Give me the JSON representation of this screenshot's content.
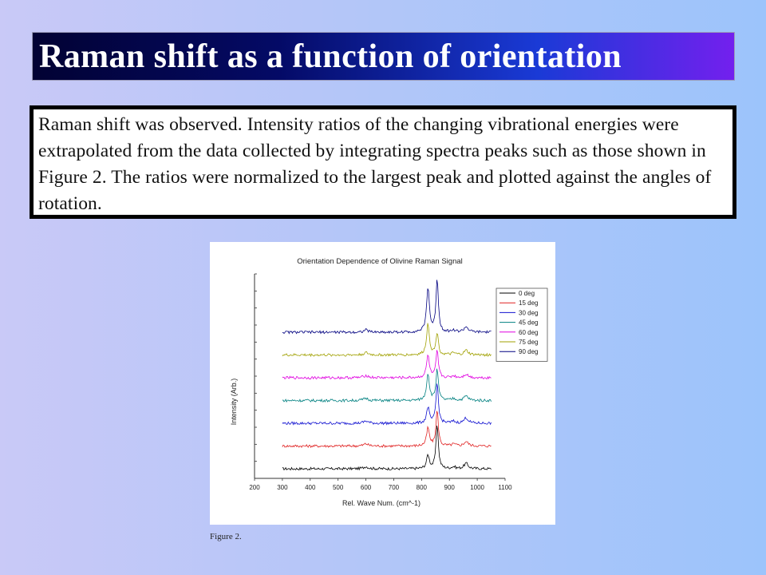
{
  "slide": {
    "title": "Raman shift as a function of orientation",
    "body": "Raman shift was observed. Intensity ratios of the changing vibrational energies were extrapolated from the data collected by integrating spectra peaks such  as those shown in Figure 2. The ratios were normalized to the largest peak and plotted against the angles of rotation.",
    "caption": "Figure 2."
  },
  "colors": {
    "title_bar_start": "#020233",
    "title_bar_end": "#7320ee",
    "background": "#b4c6f8"
  },
  "chart_data": {
    "type": "line",
    "title": "Orientation Dependence of Olivine Raman Signal",
    "xlabel": "Rel. Wave Num. (cm^-1)",
    "ylabel": "Intensity (Arb.)",
    "xlim": [
      200,
      1100
    ],
    "x_ticks": [
      "200",
      "300",
      "400",
      "500",
      "600",
      "700",
      "800",
      "900",
      "1000",
      "1100"
    ],
    "y_ticks_labeled": false,
    "grid": false,
    "legend_position": "top-right",
    "x_range": [
      300,
      1050
    ],
    "peaks_cm1": [
      823,
      856,
      960
    ],
    "series": [
      {
        "name": "0 deg",
        "color": "#000000",
        "peak823": 0.3,
        "peak856": 1.0,
        "peak960": 0.12,
        "offset": 0
      },
      {
        "name": "15 deg",
        "color": "#e02020",
        "peak823": 0.4,
        "peak856": 0.8,
        "peak960": 0.1,
        "offset": 1
      },
      {
        "name": "30 deg",
        "color": "#1010d0",
        "peak823": 0.35,
        "peak856": 0.9,
        "peak960": 0.12,
        "offset": 2
      },
      {
        "name": "45 deg",
        "color": "#008080",
        "peak823": 0.6,
        "peak856": 0.7,
        "peak960": 0.1,
        "offset": 3
      },
      {
        "name": "60 deg",
        "color": "#e000e0",
        "peak823": 0.5,
        "peak856": 0.6,
        "peak960": 0.08,
        "offset": 4
      },
      {
        "name": "75 deg",
        "color": "#a0a000",
        "peak823": 0.7,
        "peak856": 0.5,
        "peak960": 0.1,
        "offset": 5
      },
      {
        "name": "90 deg",
        "color": "#000080",
        "peak823": 1.0,
        "peak856": 1.2,
        "peak960": 0.12,
        "offset": 6
      }
    ]
  }
}
